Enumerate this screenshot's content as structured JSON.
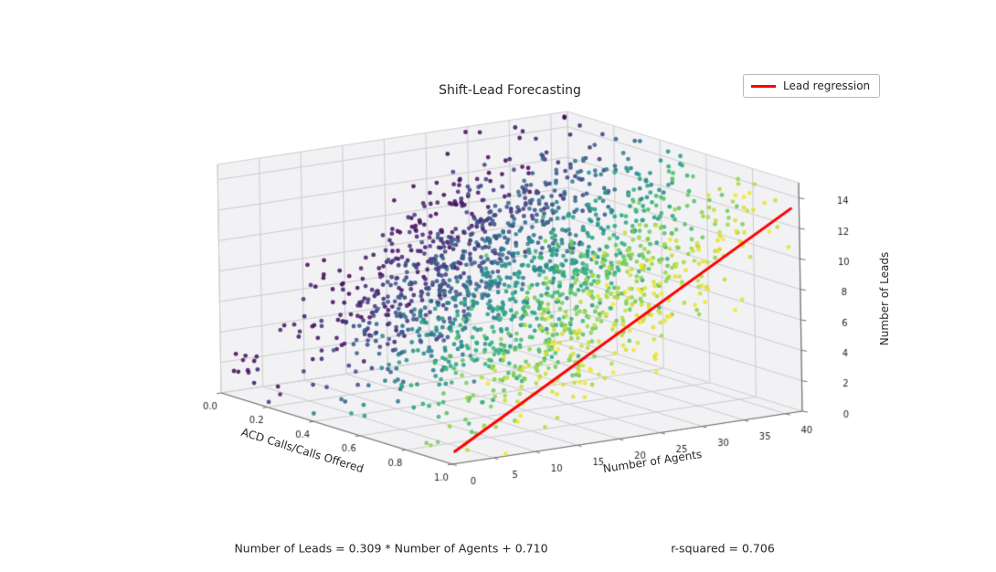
{
  "title": "Shift-Lead Forecasting",
  "legend": {
    "items": [
      {
        "label": "Lead regression",
        "color": "#ff0000"
      }
    ]
  },
  "annotations": {
    "equation": "Number of Leads = 0.309 * Number of Agents + 0.710",
    "r_squared": "r-squared = 0.706"
  },
  "chart_data": {
    "type": "scatter",
    "projection": "3d",
    "title": "Shift-Lead Forecasting",
    "xlabel": "Number of Agents",
    "ylabel": "ACD Calls/Calls Offered",
    "zlabel": "Number of Leads",
    "xlim": [
      0,
      42
    ],
    "ylim": [
      0,
      1
    ],
    "zlim": [
      0,
      15
    ],
    "xticks": [
      0,
      5,
      10,
      15,
      20,
      25,
      30,
      35,
      40
    ],
    "yticks": [
      "0.0",
      "0.2",
      "0.4",
      "0.6",
      "0.8",
      "1.0"
    ],
    "zticks": [
      0,
      2,
      4,
      6,
      8,
      10,
      12,
      14
    ],
    "colormap": "viridis",
    "color_by": "ACD Calls/Calls Offered ratio (0 = purple, 1 = yellow)",
    "viridis_stops": [
      "#440154",
      "#414487",
      "#2a788e",
      "#22a884",
      "#7ad151",
      "#fde725"
    ],
    "regression": {
      "label": "Lead regression",
      "slope": 0.309,
      "intercept": 0.71,
      "r_squared": 0.706,
      "color": "#ff0000",
      "x_start": 0.3,
      "x_end": 41.0,
      "y_plane": 1.0
    },
    "scatter": {
      "n_points": 1800,
      "seed": 11,
      "x_center": 23,
      "x_spread": 20,
      "uniform_fraction": 0.06,
      "noise_sd": 2.0,
      "left_cluster": {
        "n": 10,
        "x_min": 0.5,
        "x_max": 3.0,
        "y_max": 0.08,
        "z_min": 0.4,
        "z_max": 2.6
      },
      "point_radius": 2.4,
      "point_alpha": 0.85
    },
    "style": {
      "pane_color": "#f2f2f4",
      "grid_color": "#cdcdd1",
      "spine_color": "#707070",
      "tick_label_color": "#262626",
      "background": "#ffffff"
    }
  }
}
